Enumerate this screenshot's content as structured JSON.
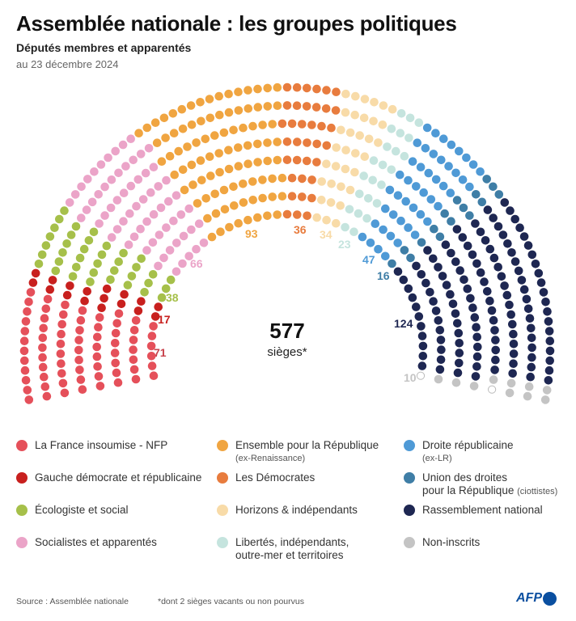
{
  "header": {
    "title": "Assemblée nationale : les groupes politiques",
    "subtitle": "Députés membres et apparentés",
    "date": "au 23 décembre 2024"
  },
  "chart_data": {
    "type": "parliament",
    "total": "577",
    "total_label": "sièges*",
    "vacant": 2,
    "series": [
      {
        "name": "La France insoumise - NFP",
        "value": 71,
        "color": "#e5505a",
        "label_color": "#c8424b"
      },
      {
        "name": "Gauche démocrate et républicaine",
        "value": 17,
        "color": "#c8201e",
        "label_color": "#c8201e"
      },
      {
        "name": "Écologiste et social",
        "value": 38,
        "color": "#a6c04a",
        "label_color": "#a6c04a"
      },
      {
        "name": "Socialistes et apparentés",
        "value": 66,
        "color": "#eba4c8",
        "label_color": "#eba4c8"
      },
      {
        "name": "Ensemble pour la République",
        "sub": "(ex-Renaissance)",
        "value": 93,
        "color": "#f0a541",
        "label_color": "#f0a541"
      },
      {
        "name": "Les Démocrates",
        "value": 36,
        "color": "#e87c3e",
        "label_color": "#e87c3e"
      },
      {
        "name": "Horizons & indépendants",
        "value": 34,
        "color": "#f8dba8",
        "label_color": "#f8dba8"
      },
      {
        "name": "Libertés, indépendants,",
        "name2": "outre-mer et territoires",
        "value": 23,
        "color": "#c5e4de",
        "label_color": "#c5e4de"
      },
      {
        "name": "Droite républicaine",
        "sub": "(ex-LR)",
        "value": 47,
        "color": "#4f9ad6",
        "label_color": "#4f9ad6"
      },
      {
        "name": "Union des droites",
        "name2": "pour la République",
        "sub_inline": "(ciottistes)",
        "value": 16,
        "color": "#3f7ea6",
        "label_color": "#3f7ea6"
      },
      {
        "name": "Rassemblement national",
        "value": 124,
        "color": "#1e2752",
        "label_color": "#1e2752"
      },
      {
        "name": "Non-inscrits",
        "value": 10,
        "color": "#c4c4c4",
        "label_color": "#c4c4c4"
      }
    ]
  },
  "footer": {
    "source": "Source : Assemblée nationale",
    "note": "*dont 2 sièges vacants ou non pourvus",
    "logo": "AFP"
  }
}
